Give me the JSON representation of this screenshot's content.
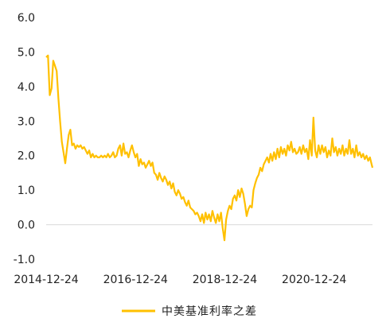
{
  "chart_data": {
    "type": "line",
    "title": "",
    "xlabel": "",
    "ylabel": "",
    "ylim": [
      -1.0,
      6.0
    ],
    "y_ticks": [
      "6.0",
      "5.0",
      "4.0",
      "3.0",
      "2.0",
      "1.0",
      "0.0",
      "-1.0"
    ],
    "x_range": [
      "2014-12-24",
      "2022-04-15"
    ],
    "x_ticks": [
      "2014-12-24",
      "2016-12-24",
      "2018-12-24",
      "2020-12-24"
    ],
    "grid": false,
    "legend_position": "bottom",
    "series": [
      {
        "name": "中美基准利率之差",
        "color": "#FFC000",
        "points": [
          [
            "2014-12-24",
            4.85
          ],
          [
            "2015-01-08",
            4.9
          ],
          [
            "2015-01-22",
            3.75
          ],
          [
            "2015-02-06",
            3.95
          ],
          [
            "2015-02-20",
            4.75
          ],
          [
            "2015-03-06",
            4.6
          ],
          [
            "2015-03-20",
            4.45
          ],
          [
            "2015-04-03",
            3.65
          ],
          [
            "2015-04-17",
            3.0
          ],
          [
            "2015-05-01",
            2.4
          ],
          [
            "2015-05-15",
            2.1
          ],
          [
            "2015-05-29",
            1.78
          ],
          [
            "2015-06-12",
            2.2
          ],
          [
            "2015-06-26",
            2.6
          ],
          [
            "2015-07-10",
            2.75
          ],
          [
            "2015-07-24",
            2.3
          ],
          [
            "2015-08-07",
            2.35
          ],
          [
            "2015-08-21",
            2.2
          ],
          [
            "2015-09-04",
            2.3
          ],
          [
            "2015-09-18",
            2.25
          ],
          [
            "2015-10-02",
            2.3
          ],
          [
            "2015-10-16",
            2.2
          ],
          [
            "2015-10-30",
            2.25
          ],
          [
            "2015-11-13",
            2.15
          ],
          [
            "2015-11-27",
            2.05
          ],
          [
            "2015-12-11",
            2.15
          ],
          [
            "2015-12-25",
            1.95
          ],
          [
            "2016-01-08",
            2.05
          ],
          [
            "2016-01-22",
            1.95
          ],
          [
            "2016-02-05",
            2.0
          ],
          [
            "2016-02-19",
            1.95
          ],
          [
            "2016-03-04",
            1.95
          ],
          [
            "2016-03-18",
            2.0
          ],
          [
            "2016-04-01",
            1.95
          ],
          [
            "2016-04-15",
            2.0
          ],
          [
            "2016-04-29",
            1.95
          ],
          [
            "2016-05-13",
            2.05
          ],
          [
            "2016-05-27",
            1.95
          ],
          [
            "2016-06-10",
            2.0
          ],
          [
            "2016-06-24",
            2.1
          ],
          [
            "2016-07-08",
            1.95
          ],
          [
            "2016-07-22",
            2.0
          ],
          [
            "2016-08-05",
            2.2
          ],
          [
            "2016-08-19",
            2.3
          ],
          [
            "2016-09-02",
            2.0
          ],
          [
            "2016-09-16",
            2.35
          ],
          [
            "2016-09-30",
            2.05
          ],
          [
            "2016-10-14",
            2.1
          ],
          [
            "2016-10-28",
            1.95
          ],
          [
            "2016-11-11",
            2.15
          ],
          [
            "2016-11-25",
            2.3
          ],
          [
            "2016-12-09",
            2.1
          ],
          [
            "2016-12-23",
            1.95
          ],
          [
            "2017-01-06",
            2.05
          ],
          [
            "2017-01-20",
            1.7
          ],
          [
            "2017-02-03",
            1.9
          ],
          [
            "2017-02-17",
            1.75
          ],
          [
            "2017-03-03",
            1.8
          ],
          [
            "2017-03-17",
            1.65
          ],
          [
            "2017-03-31",
            1.75
          ],
          [
            "2017-04-14",
            1.85
          ],
          [
            "2017-04-28",
            1.7
          ],
          [
            "2017-05-12",
            1.8
          ],
          [
            "2017-05-26",
            1.5
          ],
          [
            "2017-06-09",
            1.45
          ],
          [
            "2017-06-23",
            1.3
          ],
          [
            "2017-07-07",
            1.5
          ],
          [
            "2017-07-21",
            1.35
          ],
          [
            "2017-08-04",
            1.25
          ],
          [
            "2017-08-18",
            1.4
          ],
          [
            "2017-09-01",
            1.3
          ],
          [
            "2017-09-15",
            1.15
          ],
          [
            "2017-09-29",
            1.25
          ],
          [
            "2017-10-13",
            1.05
          ],
          [
            "2017-10-27",
            1.2
          ],
          [
            "2017-11-10",
            0.95
          ],
          [
            "2017-11-24",
            0.85
          ],
          [
            "2017-12-08",
            1.0
          ],
          [
            "2017-12-22",
            0.9
          ],
          [
            "2018-01-05",
            0.75
          ],
          [
            "2018-01-19",
            0.8
          ],
          [
            "2018-02-02",
            0.65
          ],
          [
            "2018-02-16",
            0.55
          ],
          [
            "2018-03-02",
            0.7
          ],
          [
            "2018-03-16",
            0.5
          ],
          [
            "2018-03-30",
            0.45
          ],
          [
            "2018-04-13",
            0.4
          ],
          [
            "2018-04-27",
            0.3
          ],
          [
            "2018-05-11",
            0.35
          ],
          [
            "2018-05-25",
            0.25
          ],
          [
            "2018-06-08",
            0.1
          ],
          [
            "2018-06-22",
            0.3
          ],
          [
            "2018-07-06",
            0.05
          ],
          [
            "2018-07-20",
            0.35
          ],
          [
            "2018-08-03",
            0.15
          ],
          [
            "2018-08-17",
            0.3
          ],
          [
            "2018-08-31",
            0.1
          ],
          [
            "2018-09-14",
            0.4
          ],
          [
            "2018-09-28",
            0.2
          ],
          [
            "2018-10-12",
            0.05
          ],
          [
            "2018-10-26",
            0.3
          ],
          [
            "2018-11-09",
            0.1
          ],
          [
            "2018-11-23",
            0.35
          ],
          [
            "2018-12-07",
            -0.1
          ],
          [
            "2018-12-21",
            -0.45
          ],
          [
            "2019-01-04",
            0.15
          ],
          [
            "2019-01-18",
            0.4
          ],
          [
            "2019-02-01",
            0.55
          ],
          [
            "2019-02-15",
            0.45
          ],
          [
            "2019-03-01",
            0.75
          ],
          [
            "2019-03-15",
            0.85
          ],
          [
            "2019-03-29",
            0.7
          ],
          [
            "2019-04-12",
            1.0
          ],
          [
            "2019-04-26",
            0.8
          ],
          [
            "2019-05-10",
            1.05
          ],
          [
            "2019-05-24",
            0.9
          ],
          [
            "2019-06-07",
            0.6
          ],
          [
            "2019-06-21",
            0.25
          ],
          [
            "2019-07-05",
            0.45
          ],
          [
            "2019-07-19",
            0.55
          ],
          [
            "2019-08-02",
            0.5
          ],
          [
            "2019-08-16",
            1.0
          ],
          [
            "2019-08-30",
            1.2
          ],
          [
            "2019-09-13",
            1.35
          ],
          [
            "2019-09-27",
            1.45
          ],
          [
            "2019-10-11",
            1.65
          ],
          [
            "2019-10-25",
            1.55
          ],
          [
            "2019-11-08",
            1.75
          ],
          [
            "2019-11-22",
            1.85
          ],
          [
            "2019-12-06",
            1.95
          ],
          [
            "2019-12-20",
            1.8
          ],
          [
            "2020-01-03",
            2.05
          ],
          [
            "2020-01-17",
            1.85
          ],
          [
            "2020-01-31",
            2.1
          ],
          [
            "2020-02-14",
            1.9
          ],
          [
            "2020-02-28",
            2.2
          ],
          [
            "2020-03-13",
            1.95
          ],
          [
            "2020-03-27",
            2.25
          ],
          [
            "2020-04-10",
            2.05
          ],
          [
            "2020-04-24",
            2.2
          ],
          [
            "2020-05-08",
            2.0
          ],
          [
            "2020-05-22",
            2.3
          ],
          [
            "2020-06-05",
            2.15
          ],
          [
            "2020-06-19",
            2.4
          ],
          [
            "2020-07-03",
            2.1
          ],
          [
            "2020-07-17",
            2.2
          ],
          [
            "2020-07-31",
            2.05
          ],
          [
            "2020-08-14",
            2.1
          ],
          [
            "2020-08-28",
            2.25
          ],
          [
            "2020-09-11",
            2.05
          ],
          [
            "2020-09-25",
            2.3
          ],
          [
            "2020-10-09",
            2.1
          ],
          [
            "2020-10-23",
            2.2
          ],
          [
            "2020-11-06",
            1.9
          ],
          [
            "2020-11-20",
            2.45
          ],
          [
            "2020-12-04",
            2.0
          ],
          [
            "2020-12-18",
            3.1
          ],
          [
            "2021-01-01",
            2.15
          ],
          [
            "2021-01-15",
            1.95
          ],
          [
            "2021-01-29",
            2.3
          ],
          [
            "2021-02-12",
            2.05
          ],
          [
            "2021-02-26",
            2.3
          ],
          [
            "2021-03-12",
            2.1
          ],
          [
            "2021-03-26",
            2.25
          ],
          [
            "2021-04-09",
            1.95
          ],
          [
            "2021-04-23",
            2.15
          ],
          [
            "2021-05-07",
            2.0
          ],
          [
            "2021-05-21",
            2.5
          ],
          [
            "2021-06-04",
            2.1
          ],
          [
            "2021-06-18",
            2.25
          ],
          [
            "2021-07-02",
            2.0
          ],
          [
            "2021-07-16",
            2.2
          ],
          [
            "2021-07-30",
            2.05
          ],
          [
            "2021-08-13",
            2.3
          ],
          [
            "2021-08-27",
            2.0
          ],
          [
            "2021-09-10",
            2.2
          ],
          [
            "2021-09-24",
            2.05
          ],
          [
            "2021-10-08",
            2.45
          ],
          [
            "2021-10-22",
            2.05
          ],
          [
            "2021-11-05",
            2.2
          ],
          [
            "2021-11-19",
            1.95
          ],
          [
            "2021-12-03",
            2.3
          ],
          [
            "2021-12-17",
            2.0
          ],
          [
            "2021-12-31",
            2.1
          ],
          [
            "2022-01-14",
            1.95
          ],
          [
            "2022-01-28",
            2.05
          ],
          [
            "2022-02-11",
            1.9
          ],
          [
            "2022-02-25",
            2.0
          ],
          [
            "2022-03-11",
            1.85
          ],
          [
            "2022-03-25",
            1.95
          ],
          [
            "2022-04-08",
            1.75
          ],
          [
            "2022-04-15",
            1.65
          ]
        ]
      }
    ]
  }
}
